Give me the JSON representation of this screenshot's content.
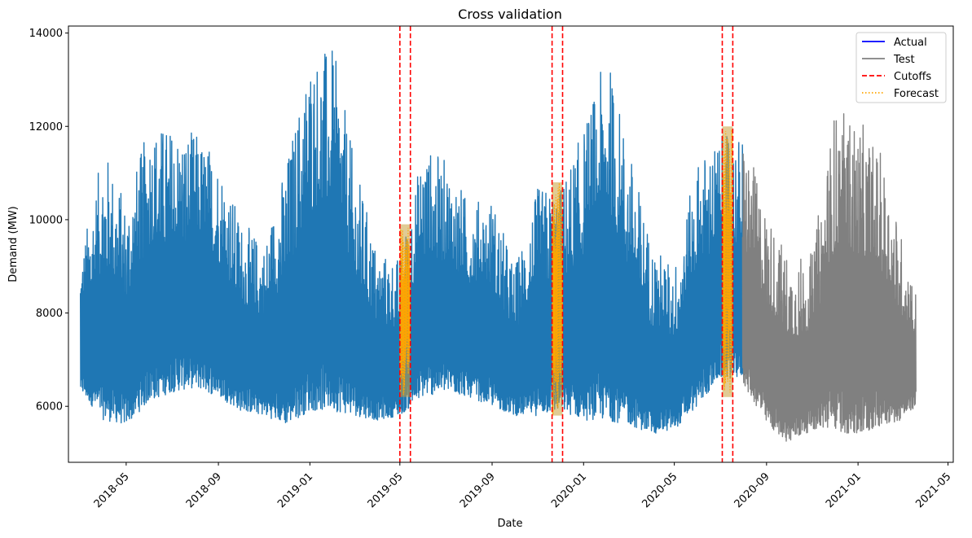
{
  "chart_data": {
    "type": "line",
    "title": "Cross validation",
    "xlabel": "Date",
    "ylabel": "Demand (MW)",
    "xlim": [
      "2018-02-13",
      "2021-05-08"
    ],
    "ylim": [
      4800,
      14150
    ],
    "yticks": [
      6000,
      8000,
      10000,
      12000,
      14000
    ],
    "xticks": [
      "2018-05",
      "2018-09",
      "2019-01",
      "2019-05",
      "2019-09",
      "2020-01",
      "2020-05",
      "2020-09",
      "2021-01",
      "2021-05"
    ],
    "grid": false,
    "legend_position": "top-right",
    "legend": [
      {
        "label": "Actual",
        "color": "#0000ff",
        "style": "solid"
      },
      {
        "label": "Test",
        "color": "#808080",
        "style": "solid"
      },
      {
        "label": "Cutoffs",
        "color": "#ff0000",
        "style": "dashed"
      },
      {
        "label": "Forecast",
        "color": "#ffa500",
        "style": "dotted"
      }
    ],
    "training_series": {
      "color": "#1f77b4",
      "x_range": [
        "2018-03-01",
        "2020-07-31"
      ],
      "envelope": [
        {
          "x": "2018-03-01",
          "min": 6300,
          "max": 9200
        },
        {
          "x": "2018-04-01",
          "min": 5700,
          "max": 11600
        },
        {
          "x": "2018-05-01",
          "min": 5600,
          "max": 10400
        },
        {
          "x": "2018-06-01",
          "min": 6100,
          "max": 12100
        },
        {
          "x": "2018-07-01",
          "min": 6300,
          "max": 12000
        },
        {
          "x": "2018-08-01",
          "min": 6400,
          "max": 11900
        },
        {
          "x": "2018-09-01",
          "min": 6200,
          "max": 11400
        },
        {
          "x": "2018-10-01",
          "min": 5900,
          "max": 10000
        },
        {
          "x": "2018-11-01",
          "min": 5800,
          "max": 9500
        },
        {
          "x": "2018-12-01",
          "min": 5600,
          "max": 11300
        },
        {
          "x": "2019-01-01",
          "min": 5900,
          "max": 13600
        },
        {
          "x": "2019-02-01",
          "min": 5900,
          "max": 13700
        },
        {
          "x": "2019-03-01",
          "min": 5800,
          "max": 11300
        },
        {
          "x": "2019-04-01",
          "min": 5700,
          "max": 9300
        },
        {
          "x": "2019-05-01",
          "min": 5800,
          "max": 9200
        },
        {
          "x": "2019-06-01",
          "min": 6200,
          "max": 11600
        },
        {
          "x": "2019-07-01",
          "min": 6300,
          "max": 11300
        },
        {
          "x": "2019-08-01",
          "min": 6200,
          "max": 10400
        },
        {
          "x": "2019-09-01",
          "min": 6000,
          "max": 10500
        },
        {
          "x": "2019-10-01",
          "min": 5800,
          "max": 9000
        },
        {
          "x": "2019-11-01",
          "min": 5800,
          "max": 10700
        },
        {
          "x": "2019-12-01",
          "min": 5900,
          "max": 10700
        },
        {
          "x": "2020-01-01",
          "min": 5700,
          "max": 12000
        },
        {
          "x": "2020-02-01",
          "min": 5700,
          "max": 13600
        },
        {
          "x": "2020-03-01",
          "min": 5600,
          "max": 11600
        },
        {
          "x": "2020-04-01",
          "min": 5400,
          "max": 9500
        },
        {
          "x": "2020-05-01",
          "min": 5500,
          "max": 9000
        },
        {
          "x": "2020-06-01",
          "min": 6000,
          "max": 11300
        },
        {
          "x": "2020-07-01",
          "min": 6600,
          "max": 11800
        }
      ]
    },
    "test_series": {
      "color": "#808080",
      "x_range": [
        "2020-07-31",
        "2021-03-19"
      ],
      "envelope": [
        {
          "x": "2020-07-31",
          "min": 6500,
          "max": 11900
        },
        {
          "x": "2020-09-01",
          "min": 5600,
          "max": 10200
        },
        {
          "x": "2020-10-01",
          "min": 5200,
          "max": 9200
        },
        {
          "x": "2020-11-01",
          "min": 5500,
          "max": 9300
        },
        {
          "x": "2020-12-01",
          "min": 5500,
          "max": 12400
        },
        {
          "x": "2021-01-01",
          "min": 5300,
          "max": 12200
        },
        {
          "x": "2021-02-01",
          "min": 5600,
          "max": 11400
        },
        {
          "x": "2021-03-01",
          "min": 5700,
          "max": 9600
        },
        {
          "x": "2021-03-19",
          "min": 6000,
          "max": 8500
        }
      ]
    },
    "cutoffs": [
      {
        "start": "2019-05-01",
        "end": "2019-05-15"
      },
      {
        "start": "2019-11-20",
        "end": "2019-12-04"
      },
      {
        "start": "2020-07-04",
        "end": "2020-07-18"
      }
    ],
    "forecast_windows": [
      {
        "start": "2019-05-01",
        "end": "2019-05-15",
        "min": 6200,
        "max": 9900
      },
      {
        "start": "2019-11-20",
        "end": "2019-12-04",
        "min": 5800,
        "max": 10800
      },
      {
        "start": "2020-07-04",
        "end": "2020-07-18",
        "min": 6200,
        "max": 12000
      }
    ]
  }
}
